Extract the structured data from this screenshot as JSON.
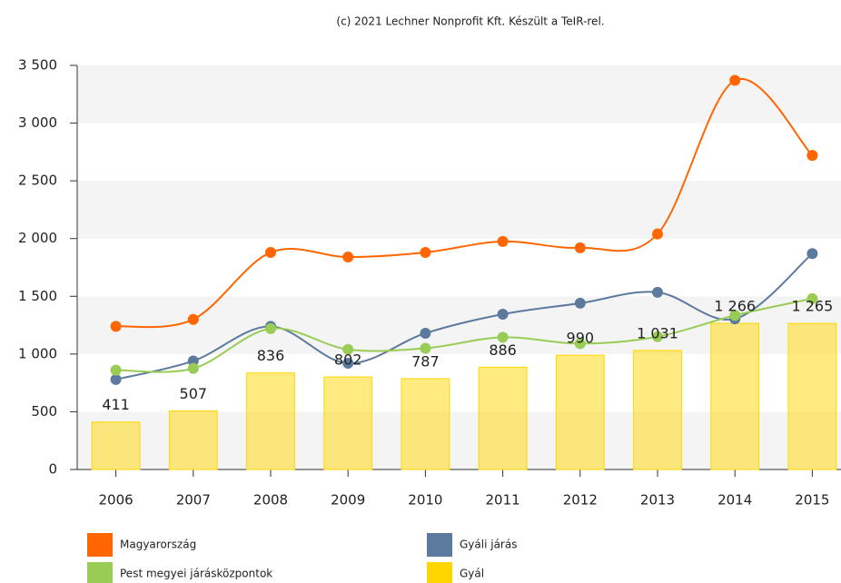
{
  "chart_data": {
    "type": "bar-line",
    "credit": "(c) 2021 Lechner Nonprofit Kft. Készült a TeIR-rel.",
    "categories": [
      "2006",
      "2007",
      "2008",
      "2009",
      "2010",
      "2011",
      "2012",
      "2013",
      "2014",
      "2015"
    ],
    "series": [
      {
        "name": "Magyarország",
        "color": "#ff6600",
        "type": "line",
        "values": [
          1240,
          1300,
          1880,
          1840,
          1880,
          1975,
          1920,
          2040,
          3370,
          2720
        ]
      },
      {
        "name": "Gyáli járás",
        "color": "#5c7a9e",
        "type": "line",
        "values": [
          780,
          940,
          1240,
          920,
          1180,
          1345,
          1440,
          1535,
          1305,
          1870
        ]
      },
      {
        "name": "Pest megyei járásközpontok",
        "color": "#99cc55",
        "type": "line",
        "values": [
          860,
          875,
          1220,
          1040,
          1050,
          1145,
          1090,
          1150,
          1335,
          1480
        ]
      },
      {
        "name": "Gyál",
        "color": "#ffd700",
        "type": "bar",
        "values": [
          411,
          507,
          836,
          802,
          787,
          886,
          990,
          1031,
          1266,
          1265
        ],
        "value_labels": [
          "411",
          "507",
          "836",
          "802",
          "787",
          "886",
          "990",
          "1 031",
          "1 266",
          "1 265"
        ]
      }
    ],
    "ylim": [
      0,
      3500
    ],
    "yticks": [
      0,
      500,
      {
        "value": 1000,
        "label": "1 000"
      },
      {
        "value": 1500,
        "label": "1 500"
      },
      {
        "value": 2000,
        "label": "2 000"
      },
      {
        "value": 2500,
        "label": "2 500"
      },
      {
        "value": 3000,
        "label": "3 000"
      },
      {
        "value": 3500,
        "label": "3 500"
      }
    ],
    "alternate_bands": true
  }
}
